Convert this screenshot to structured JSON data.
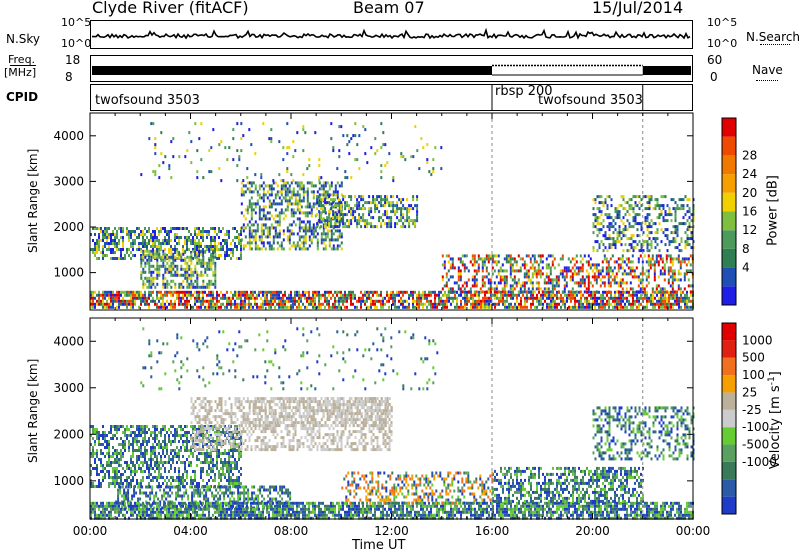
{
  "header": {
    "radar": "Clyde River (fitACF)",
    "beam": "Beam 07",
    "date": "15/Jul/2014"
  },
  "top_strip": {
    "nsky_label": "N.Sky",
    "nsearch_label": "N.Search",
    "nsky_ticks": [
      "10^5",
      "10^0"
    ],
    "nsearch_ticks": [
      "10^5",
      "10^0"
    ],
    "freq_label": "Freq.",
    "freq_unit": "[MHz]",
    "freq_ticks": [
      "18",
      "8"
    ],
    "nave_label": "Nave",
    "nave_ticks": [
      "60",
      "0"
    ],
    "cpid_label": "CPID",
    "cpid_segments": [
      {
        "text": "twofsound 3503"
      },
      {
        "text": "rbsp 200"
      },
      {
        "text": "twofsound 3503"
      }
    ]
  },
  "chart_data": [
    {
      "type": "heatmap",
      "panel": "power",
      "ylabel": "Slant Range [km]",
      "xlabel": "Time UT",
      "x_tick_labels": [
        "00:00",
        "04:00",
        "08:00",
        "12:00",
        "16:00",
        "20:00",
        "00:00"
      ],
      "y_tick_labels": [
        "1000",
        "2000",
        "3000",
        "4000"
      ],
      "ylim": [
        180,
        4500
      ],
      "colorbar": {
        "label": "Power [dB]",
        "ticks": [
          "4",
          "8",
          "12",
          "16",
          "20",
          "24",
          "28"
        ],
        "colors": [
          "#1e1ee6",
          "#1f4fb4",
          "#2f7f52",
          "#4c9a5c",
          "#7fbf3f",
          "#f0d000",
          "#f5a000",
          "#f07a00",
          "#ee4a00",
          "#e00000"
        ]
      },
      "mode_change_hours": [
        16,
        22
      ]
    },
    {
      "type": "heatmap",
      "panel": "velocity",
      "ylabel": "Slant Range [km]",
      "xlabel": "Time UT",
      "x_tick_labels": [
        "00:00",
        "04:00",
        "08:00",
        "12:00",
        "16:00",
        "20:00",
        "00:00"
      ],
      "y_tick_labels": [
        "1000",
        "2000",
        "3000",
        "4000"
      ],
      "ylim": [
        180,
        4500
      ],
      "colorbar": {
        "label": "Velocity [m s",
        "label_exp": "-1",
        "label_end": "]",
        "ticks": [
          "1000",
          "500",
          "100",
          "25",
          "-25",
          "-100",
          "-500",
          "-1000"
        ],
        "colors": [
          "#1e3cc8",
          "#2a5aa8",
          "#3a7a5a",
          "#5aa060",
          "#66cc33",
          "#cccccc",
          "#bbb09a",
          "#f5a000",
          "#f07020",
          "#e02010",
          "#e00000"
        ]
      },
      "mode_change_hours": [
        16,
        22
      ]
    }
  ],
  "axis_title": "Time UT"
}
